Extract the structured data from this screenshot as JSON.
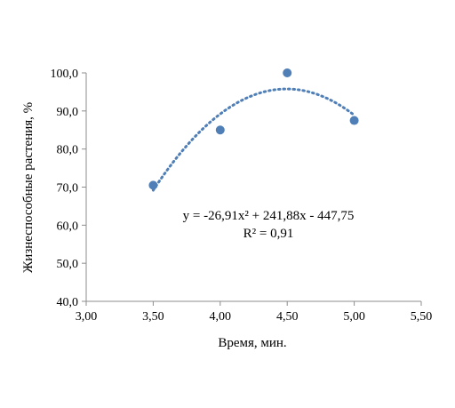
{
  "chart_data": {
    "type": "scatter",
    "title": "",
    "xlabel": "Время, мин.",
    "ylabel": "Жизнеспособные растения, %",
    "xlim": [
      3.0,
      5.5
    ],
    "ylim": [
      40.0,
      100.0
    ],
    "x_ticks": [
      "3,00",
      "3,50",
      "4,00",
      "4,50",
      "5,00",
      "5,50"
    ],
    "y_ticks": [
      "40,0",
      "50,0",
      "60,0",
      "70,0",
      "80,0",
      "90,0",
      "100,0"
    ],
    "grid": false,
    "legend": "none",
    "series": [
      {
        "x": [
          3.5,
          4.0,
          4.5,
          5.0
        ],
        "y": [
          70.5,
          85.0,
          100.0,
          87.5
        ],
        "marker": "circle",
        "color": "#4f7fb6"
      }
    ],
    "trendline": {
      "type": "polynomial",
      "order": 2,
      "coefficients": [
        -26.91,
        241.88,
        -447.75
      ],
      "x_range": [
        3.5,
        5.0
      ],
      "style": "dotted",
      "color": "#4f7fb6"
    },
    "annotations": {
      "equation": "y = -26,91x² + 241,88x - 447,75",
      "r_squared": "R² = 0,91"
    }
  }
}
